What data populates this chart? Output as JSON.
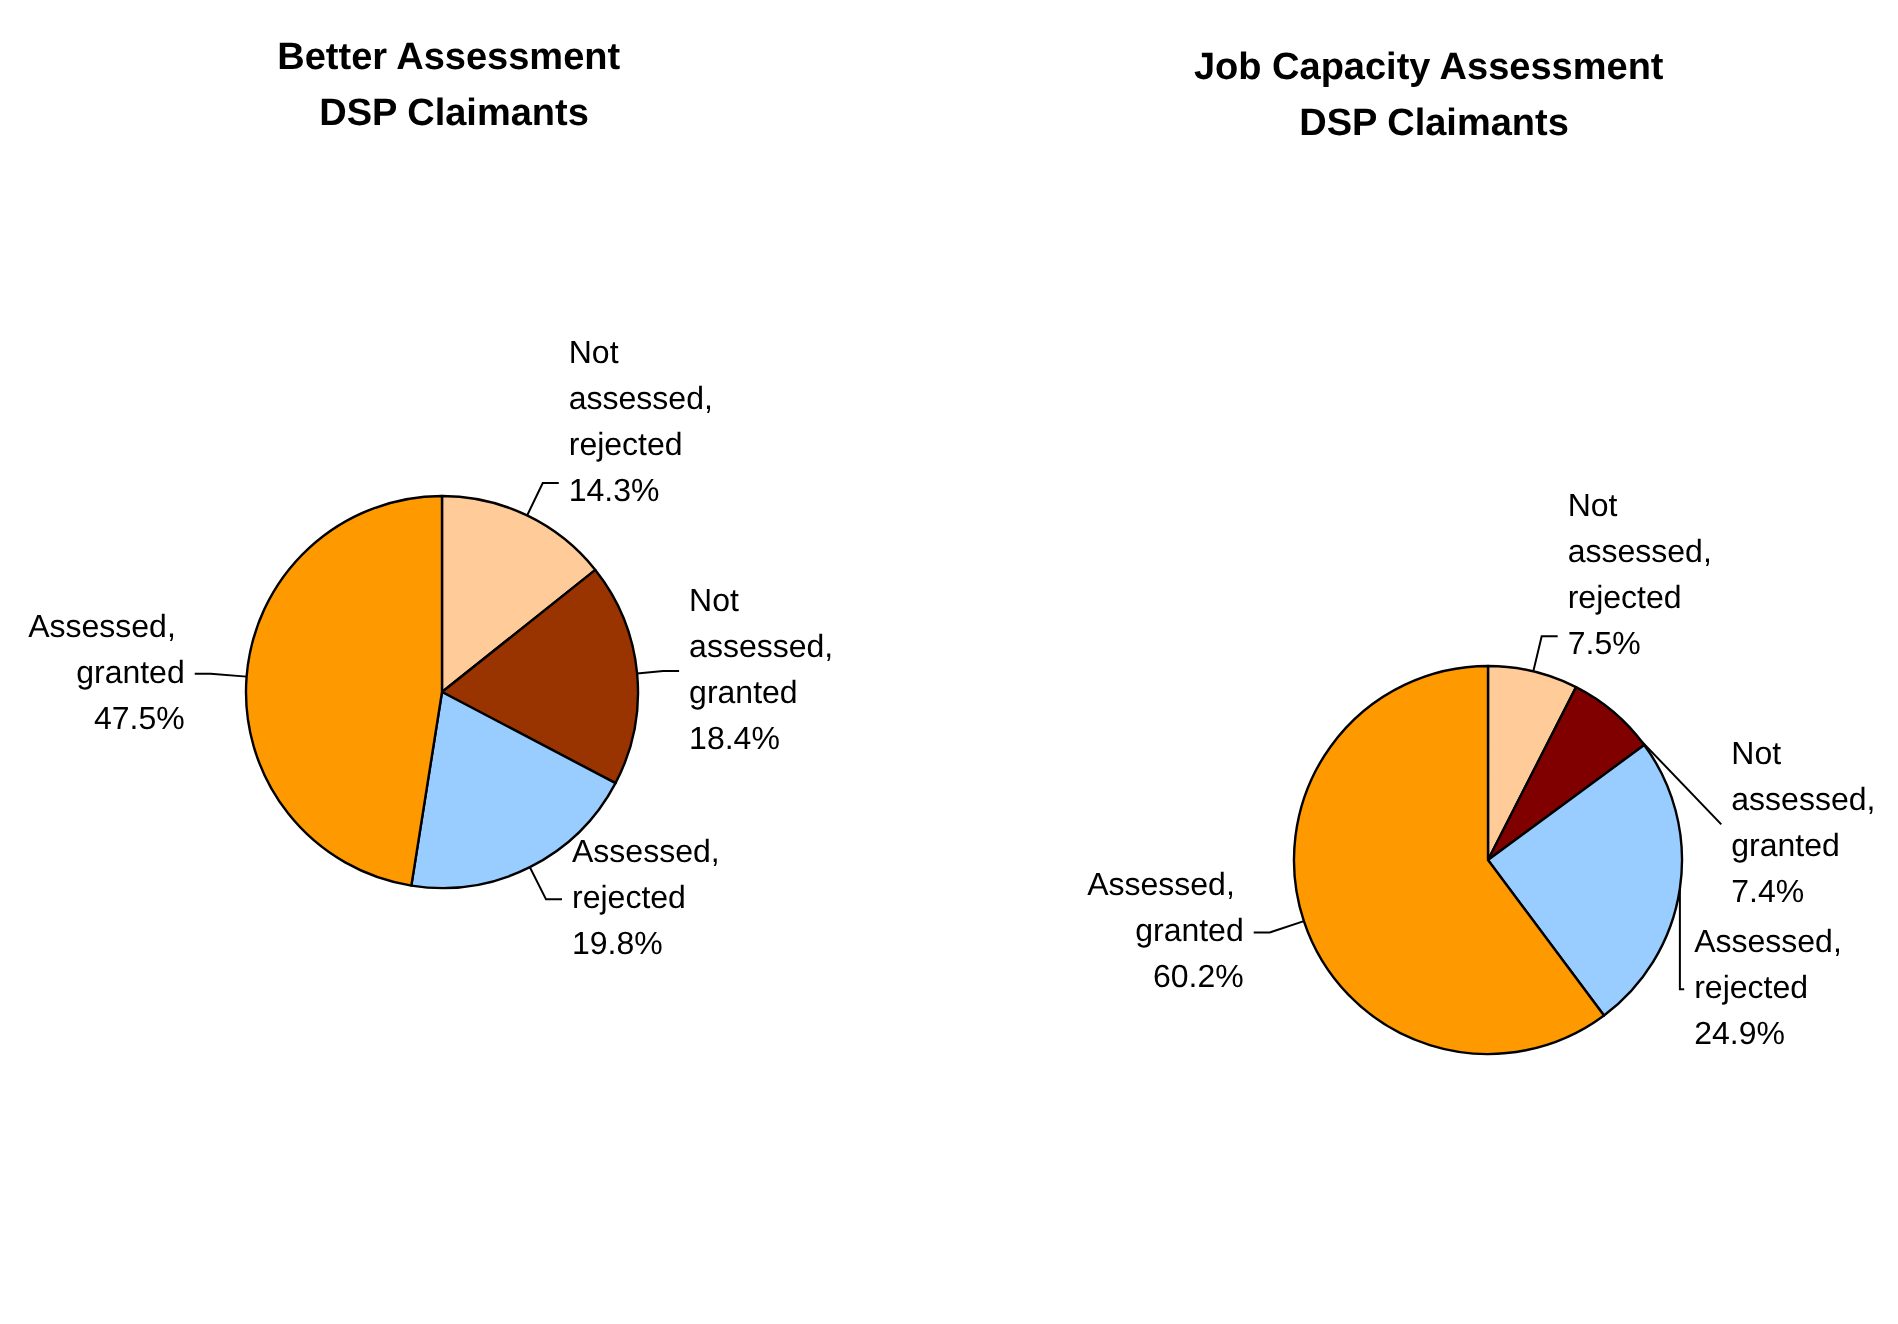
{
  "chart_data": [
    {
      "type": "pie",
      "title": "Better Assessment DSP Claimants",
      "categories": [
        "Not assessed, rejected",
        "Not assessed, granted",
        "Assessed, rejected",
        "Assessed, granted"
      ],
      "values": [
        14.3,
        18.4,
        19.8,
        47.5
      ],
      "colors": [
        "#ffcc99",
        "#993300",
        "#99ccff",
        "#ff9900"
      ],
      "value_labels": [
        "14.3%",
        "18.4%",
        "19.8%",
        "47.5%"
      ],
      "legend": false
    },
    {
      "type": "pie",
      "title": "Job Capacity Assessment DSP Claimants",
      "categories": [
        "Not assessed, rejected",
        "Not assessed, granted",
        "Assessed, rejected",
        "Assessed, granted"
      ],
      "values": [
        7.5,
        7.4,
        24.9,
        60.2
      ],
      "colors": [
        "#ffcc99",
        "#800000",
        "#99ccff",
        "#ff9900"
      ],
      "value_labels": [
        "7.5%",
        "7.4%",
        "24.9%",
        "60.2%"
      ],
      "legend": false
    }
  ]
}
